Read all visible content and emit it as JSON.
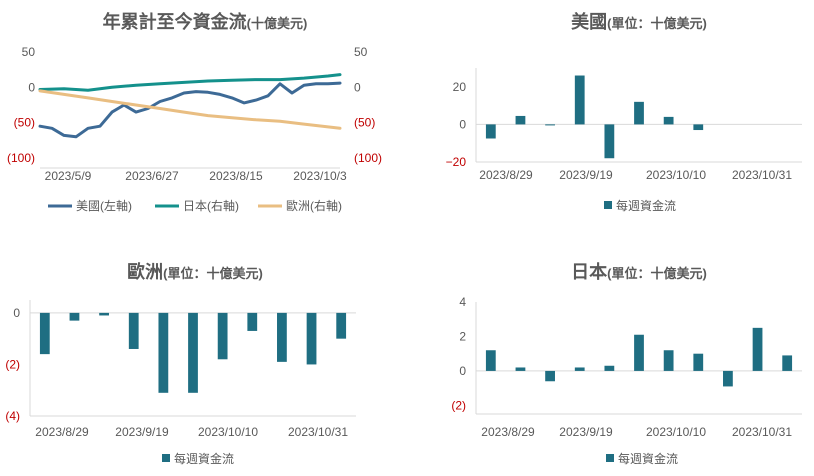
{
  "colors": {
    "us": "#3D6A96",
    "jp": "#14918C",
    "eu": "#E9BE82",
    "bar": "#1F6E82",
    "axis": "#D9D9D9",
    "text": "#595959",
    "neg": "#C00000"
  },
  "charts": {
    "ytd": {
      "title_main": "年累計至今資金流",
      "title_sub": "(十億美元)",
      "legend": [
        "美國(左軸)",
        "日本(右軸)",
        "歐洲(右軸)"
      ]
    },
    "us": {
      "title_main": "美國",
      "title_sub": "(單位：十億美元)",
      "legend": "每週資金流"
    },
    "eu": {
      "title_main": "歐洲",
      "title_sub": "(單位：十億美元)",
      "legend": "每週資金流"
    },
    "jp": {
      "title_main": "日本",
      "title_sub": "(單位：十億美元)",
      "legend": "每週資金流"
    }
  },
  "chart_data": [
    {
      "id": "ytd",
      "type": "line",
      "title": "年累計至今資金流(十億美元)",
      "xlim": [
        0,
        160
      ],
      "x_ticks": [
        0,
        49,
        98,
        147
      ],
      "x_tick_labels": [
        "2023/5/9",
        "2023/6/27",
        "2023/8/15",
        "2023/10/3"
      ],
      "ylim_left": [
        -100,
        50
      ],
      "ylim_right": [
        -100,
        50
      ],
      "y_ticks": [
        50,
        0,
        -50,
        -100
      ],
      "y_tick_labels_left": [
        "50",
        "0",
        "(50)",
        "(100)"
      ],
      "y_tick_labels_right": [
        "50",
        "0",
        "(50)",
        "(100)"
      ],
      "grid": false,
      "legend_position": "bottom",
      "series": [
        {
          "name": "美國(左軸)",
          "axis": "left",
          "color_key": "us",
          "x": [
            0,
            7,
            14,
            21,
            28,
            35,
            42,
            49,
            56,
            63,
            70,
            77,
            84,
            91,
            98,
            105,
            112,
            119,
            126,
            133,
            140,
            147,
            154,
            161,
            168,
            175
          ],
          "y": [
            -55,
            -58,
            -68,
            -70,
            -58,
            -55,
            -35,
            -25,
            -35,
            -30,
            -20,
            -15,
            -8,
            -6,
            -7,
            -10,
            -15,
            -22,
            -18,
            -12,
            5,
            -8,
            3,
            5,
            5,
            6
          ]
        },
        {
          "name": "日本(右軸)",
          "axis": "right",
          "color_key": "jp",
          "x": [
            0,
            14,
            28,
            42,
            56,
            70,
            84,
            98,
            112,
            126,
            140,
            154,
            168,
            175
          ],
          "y": [
            -3,
            -2,
            -4,
            0,
            3,
            5,
            7,
            9,
            10,
            11,
            11,
            13,
            16,
            18
          ]
        },
        {
          "name": "歐洲(右軸)",
          "axis": "right",
          "color_key": "eu",
          "x": [
            0,
            14,
            28,
            42,
            56,
            70,
            84,
            98,
            112,
            126,
            140,
            154,
            168,
            175
          ],
          "y": [
            -5,
            -10,
            -15,
            -20,
            -25,
            -30,
            -35,
            -40,
            -43,
            -46,
            -48,
            -52,
            -56,
            -58
          ]
        }
      ]
    },
    {
      "id": "us",
      "type": "bar",
      "title": "美國(單位：十億美元)",
      "ylim": [
        -20,
        30
      ],
      "y_ticks": [
        20,
        0,
        -20
      ],
      "y_tick_labels": [
        "20",
        "0",
        "−20"
      ],
      "x_tick_labels": [
        "2023/8/29",
        "2023/9/19",
        "2023/10/10",
        "2023/10/31"
      ],
      "legend": "每週資金流",
      "values": [
        -7.5,
        4.5,
        -0.5,
        26,
        -18,
        12,
        4,
        -3,
        0,
        0,
        0
      ]
    },
    {
      "id": "eu",
      "type": "bar",
      "title": "歐洲(單位：十億美元)",
      "ylim": [
        -4,
        0.5
      ],
      "y_ticks": [
        0,
        -2,
        -4
      ],
      "y_tick_labels": [
        "0",
        "(2)",
        "(4)"
      ],
      "x_tick_labels": [
        "2023/8/29",
        "2023/9/19",
        "2023/10/10",
        "2023/10/31"
      ],
      "legend": "每週資金流",
      "values": [
        -1.6,
        -0.3,
        -0.1,
        -1.4,
        -3.1,
        -3.1,
        -1.8,
        -0.7,
        -1.9,
        -2.0,
        -1.0
      ]
    },
    {
      "id": "jp",
      "type": "bar",
      "title": "日本(單位：十億美元)",
      "ylim": [
        -2.5,
        4
      ],
      "y_ticks": [
        4,
        2,
        0,
        -2
      ],
      "y_tick_labels": [
        "4",
        "2",
        "0",
        "(2)"
      ],
      "x_tick_labels": [
        "2023/8/29",
        "2023/9/19",
        "2023/10/10",
        "2023/10/31"
      ],
      "legend": "每週資金流",
      "values": [
        1.2,
        0.2,
        -0.6,
        0.2,
        0.3,
        2.1,
        1.2,
        1.0,
        -0.9,
        2.5,
        0.9
      ]
    }
  ]
}
